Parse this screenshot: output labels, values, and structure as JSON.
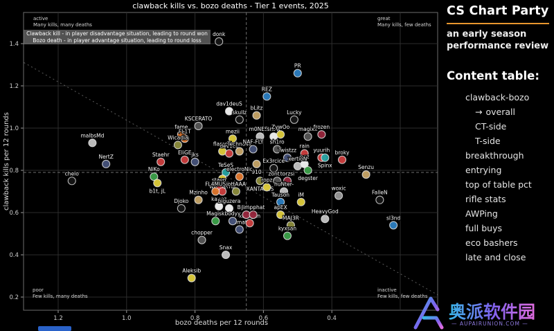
{
  "sidebar": {
    "title": "CS Chart Party",
    "subtitle": "an early season performance review",
    "content_title": "Content table:",
    "accent_color": "#e8962e",
    "items": [
      {
        "label": "clawback-bozo",
        "indent": 1,
        "active": false
      },
      {
        "label": "overall",
        "indent": 2,
        "active": true,
        "arrow": "→"
      },
      {
        "label": "CT-side",
        "indent": 2,
        "active": false
      },
      {
        "label": "T-side",
        "indent": 2,
        "active": false
      },
      {
        "label": "breakthrough",
        "indent": 1,
        "active": false
      },
      {
        "label": "entrying",
        "indent": 1,
        "active": false
      },
      {
        "label": "top of table pct",
        "indent": 1,
        "active": false
      },
      {
        "label": "rifle stats",
        "indent": 1,
        "active": false
      },
      {
        "label": "AWPing",
        "indent": 1,
        "active": false
      },
      {
        "label": "full buys",
        "indent": 1,
        "active": false
      },
      {
        "label": "eco bashers",
        "indent": 1,
        "active": false
      },
      {
        "label": "late and close",
        "indent": 1,
        "active": false
      }
    ]
  },
  "watermark": {
    "text": "奥派软件园",
    "subtext": "— AUPAIRUNION.COM —",
    "colors": [
      "#38b7e8",
      "#7e62ee",
      "#e26ce0"
    ]
  },
  "chart_data": {
    "type": "scatter",
    "title": "clawback kills vs. bozo deaths - Tier 1 events, 2025",
    "xlabel": "bozo deaths per 12 rounds",
    "ylabel": "clawback kills per 12 rounds",
    "x_ticks": [
      1.2,
      1.0,
      0.8,
      0.6,
      0.4
    ],
    "x_grid": [
      1.2,
      1.0,
      0.8,
      0.6,
      0.4,
      0.2
    ],
    "y_ticks": [
      1.4,
      1.2,
      1.0,
      0.8,
      0.6,
      0.4,
      0.2
    ],
    "x_axis_inverted": true,
    "grid": true,
    "legend": "none",
    "mean_lines": {
      "x": 0.65,
      "y": 0.79
    },
    "diagonal_line": {
      "x1": 1.3,
      "y1": 1.31,
      "x2": 0.09,
      "y2": 0.21
    },
    "explainer_lines": [
      "Clawback kill - in player disadvantage situation, leading to round won",
      "Bozo death - in player advantage situation, leading to round loss"
    ],
    "quadrants": {
      "tl": {
        "tag": "active",
        "desc": "Many kills, many deaths"
      },
      "tr": {
        "tag": "great",
        "desc": "Many kills, few deaths"
      },
      "bl": {
        "tag": "poor",
        "desc": "Few kills, many deaths"
      },
      "br": {
        "tag": "inactive",
        "desc": "Few kills, few deaths"
      }
    },
    "palette": {
      "blue": "#2d7fc1",
      "navy": "#46537b",
      "red": "#cd3f3f",
      "crimson": "#97263d",
      "orange": "#e2792f",
      "yellow": "#e0ce3c",
      "green": "#3da24a",
      "teal": "#27a5a5",
      "tan": "#c8a668",
      "olive": "#8e8e3e",
      "white": "#f5f5f5",
      "silver": "#c4c4c4",
      "gray": "#9a9a9a",
      "darkgray": "#575757",
      "hollow": "hollow"
    },
    "points": [
      {
        "name": "donk",
        "x": 0.73,
        "y": 1.41,
        "color": "hollow"
      },
      {
        "name": "PR",
        "x": 0.5,
        "y": 1.26,
        "color": "blue"
      },
      {
        "name": "REZ",
        "x": 0.59,
        "y": 1.15,
        "color": "blue"
      },
      {
        "name": "dav1deuS",
        "x": 0.7,
        "y": 1.08,
        "color": "white"
      },
      {
        "name": "skullz",
        "x": 0.67,
        "y": 1.04,
        "color": "hollow"
      },
      {
        "name": "bLitz",
        "x": 0.62,
        "y": 1.06,
        "color": "tan"
      },
      {
        "name": "Lucky",
        "x": 0.51,
        "y": 1.04,
        "color": "hollow"
      },
      {
        "name": "KSCERATO",
        "x": 0.79,
        "y": 1.01,
        "color": "darkgray"
      },
      {
        "name": "fame",
        "x": 0.84,
        "y": 0.97,
        "color": "orange"
      },
      {
        "name": "FL1T",
        "x": 0.83,
        "y": 0.95,
        "color": "orange"
      },
      {
        "name": "Wicadia",
        "x": 0.85,
        "y": 0.92,
        "color": "olive"
      },
      {
        "name": "malbsMd",
        "x": 1.1,
        "y": 0.93,
        "color": "silver"
      },
      {
        "name": "NertZ",
        "x": 1.06,
        "y": 0.83,
        "color": "navy"
      },
      {
        "name": "chelo",
        "x": 1.16,
        "y": 0.75,
        "color": "hollow"
      },
      {
        "name": "Staehr",
        "x": 0.9,
        "y": 0.84,
        "color": "red"
      },
      {
        "name": "EliGE",
        "x": 0.83,
        "y": 0.85,
        "color": "red"
      },
      {
        "name": "jks",
        "x": 0.8,
        "y": 0.84,
        "color": "navy"
      },
      {
        "name": "NiKo",
        "x": 0.92,
        "y": 0.77,
        "color": "green"
      },
      {
        "name": "b1t, jL",
        "x": 0.91,
        "y": 0.74,
        "color": "yellow",
        "label": "below"
      },
      {
        "name": "mezii",
        "x": 0.69,
        "y": 0.95,
        "color": "yellow"
      },
      {
        "name": "m0NESY",
        "x": 0.61,
        "y": 0.96,
        "color": "silver"
      },
      {
        "name": "snow",
        "x": 0.57,
        "y": 0.96,
        "color": "white"
      },
      {
        "name": "ZywOo",
        "x": 0.55,
        "y": 0.97,
        "color": "yellow"
      },
      {
        "name": "magixx",
        "x": 0.47,
        "y": 0.96,
        "color": "darkgray"
      },
      {
        "name": "frozen",
        "x": 0.43,
        "y": 0.97,
        "color": "crimson"
      },
      {
        "name": "flameZ",
        "x": 0.72,
        "y": 0.89,
        "color": "yellow"
      },
      {
        "name": "dev1ce",
        "x": 0.7,
        "y": 0.88,
        "color": "red"
      },
      {
        "name": "Techno4k",
        "x": 0.67,
        "y": 0.89,
        "color": "tan"
      },
      {
        "name": "NAF-FLY",
        "x": 0.63,
        "y": 0.9,
        "color": "navy"
      },
      {
        "name": "sh1ro",
        "x": 0.56,
        "y": 0.9,
        "color": "darkgray"
      },
      {
        "name": "Twistzz",
        "x": 0.53,
        "y": 0.86,
        "color": "navy"
      },
      {
        "name": "rain",
        "x": 0.48,
        "y": 0.88,
        "color": "red"
      },
      {
        "name": "yuurih",
        "x": 0.43,
        "y": 0.86,
        "color": "red"
      },
      {
        "name": "Spinx",
        "x": 0.42,
        "y": 0.86,
        "color": "teal",
        "label": "below"
      },
      {
        "name": "broky",
        "x": 0.37,
        "y": 0.85,
        "color": "red"
      },
      {
        "name": "Senzu",
        "x": 0.3,
        "y": 0.78,
        "color": "tan"
      },
      {
        "name": "nqz",
        "x": 0.48,
        "y": 0.83,
        "color": "white"
      },
      {
        "name": "xertioN",
        "x": 0.5,
        "y": 0.82,
        "color": "silver"
      },
      {
        "name": "degster",
        "x": 0.47,
        "y": 0.8,
        "color": "green",
        "label": "below"
      },
      {
        "name": "910",
        "x": 0.62,
        "y": 0.83,
        "color": "tan",
        "label": "below"
      },
      {
        "name": "Ex3rcice",
        "x": 0.57,
        "y": 0.81,
        "color": "hollow"
      },
      {
        "name": "TeSeS",
        "x": 0.71,
        "y": 0.79,
        "color": "teal"
      },
      {
        "name": "w0nderful",
        "x": 0.72,
        "y": 0.76,
        "color": "yellow",
        "label": "below"
      },
      {
        "name": "electroNic",
        "x": 0.67,
        "y": 0.77,
        "color": "orange"
      },
      {
        "name": "XANTARES",
        "x": 0.61,
        "y": 0.75,
        "color": "olive",
        "label": "below"
      },
      {
        "name": "zont1x",
        "x": 0.56,
        "y": 0.75,
        "color": "darkgray"
      },
      {
        "name": "torzsi",
        "x": 0.53,
        "y": 0.75,
        "color": "crimson"
      },
      {
        "name": "ropz",
        "x": 0.59,
        "y": 0.72,
        "color": "yellow"
      },
      {
        "name": "huNter-",
        "x": 0.54,
        "y": 0.7,
        "color": "silver"
      },
      {
        "name": "stavn",
        "x": 0.73,
        "y": 0.72,
        "color": "red"
      },
      {
        "name": "Jabbi",
        "x": 0.72,
        "y": 0.7,
        "color": "red"
      },
      {
        "name": "FL4MUS",
        "x": 0.74,
        "y": 0.7,
        "color": "orange"
      },
      {
        "name": "jottAAA",
        "x": 0.68,
        "y": 0.7,
        "color": "olive"
      },
      {
        "name": "kauez",
        "x": 0.73,
        "y": 0.63,
        "color": "white"
      },
      {
        "name": "biguzera",
        "x": 0.7,
        "y": 0.62,
        "color": "white"
      },
      {
        "name": "Mzinho",
        "x": 0.79,
        "y": 0.66,
        "color": "tan"
      },
      {
        "name": "Djoko",
        "x": 0.84,
        "y": 0.62,
        "color": "hollow"
      },
      {
        "name": "Magisk",
        "x": 0.74,
        "y": 0.56,
        "color": "green"
      },
      {
        "name": "ultimate",
        "x": 0.67,
        "y": 0.52,
        "color": "navy"
      },
      {
        "name": "karrigan",
        "x": 0.64,
        "y": 0.55,
        "color": "red"
      },
      {
        "name": "bodyy",
        "x": 0.69,
        "y": 0.56,
        "color": "navy"
      },
      {
        "name": "Brollan",
        "x": 0.65,
        "y": 0.59,
        "color": "crimson"
      },
      {
        "name": "Jimpphat",
        "x": 0.63,
        "y": 0.59,
        "color": "crimson"
      },
      {
        "name": "Tauson",
        "x": 0.55,
        "y": 0.65,
        "color": "blue"
      },
      {
        "name": "iM",
        "x": 0.49,
        "y": 0.65,
        "color": "yellow"
      },
      {
        "name": "apEX",
        "x": 0.55,
        "y": 0.59,
        "color": "yellow"
      },
      {
        "name": "MAJ3R",
        "x": 0.52,
        "y": 0.54,
        "color": "olive"
      },
      {
        "name": "kyxsan",
        "x": 0.53,
        "y": 0.49,
        "color": "green"
      },
      {
        "name": "HeavyGod",
        "x": 0.42,
        "y": 0.57,
        "color": "silver"
      },
      {
        "name": "woxic",
        "x": 0.38,
        "y": 0.68,
        "color": "gray"
      },
      {
        "name": "FalleN",
        "x": 0.26,
        "y": 0.66,
        "color": "hollow"
      },
      {
        "name": "sl3nd",
        "x": 0.22,
        "y": 0.54,
        "color": "blue"
      },
      {
        "name": "chopper",
        "x": 0.78,
        "y": 0.47,
        "color": "darkgray"
      },
      {
        "name": "Snax",
        "x": 0.71,
        "y": 0.4,
        "color": "silver"
      },
      {
        "name": "Aleksib",
        "x": 0.81,
        "y": 0.29,
        "color": "yellow"
      }
    ]
  }
}
